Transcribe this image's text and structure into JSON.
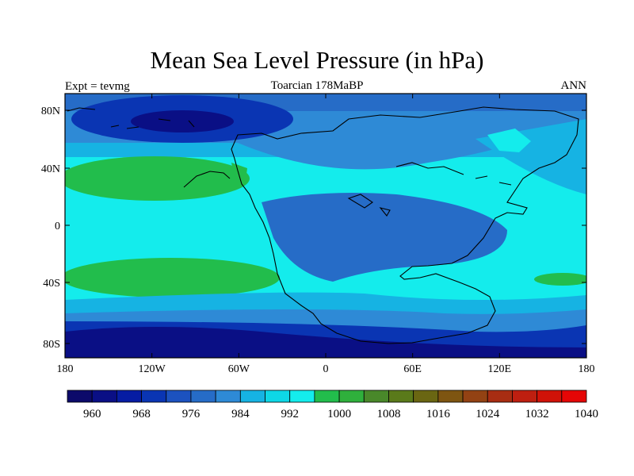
{
  "title": "Mean Sea Level Pressure (in hPa)",
  "left_label": "Expt = tevmg",
  "center_label": "Toarcian 178MaBP",
  "right_label": "ANN",
  "axes": {
    "lat_ticks": [
      "80N",
      "40N",
      "0",
      "40S",
      "80S"
    ],
    "lon_ticks": [
      "180",
      "120W",
      "60W",
      "0",
      "60E",
      "120E",
      "180"
    ]
  },
  "colorbar": {
    "colors": [
      "#0c0a6a",
      "#0a0f85",
      "#061ca3",
      "#0a35b3",
      "#1c52bf",
      "#266cc7",
      "#2e8ad6",
      "#16b3e3",
      "#0ed7e6",
      "#14ecec",
      "#22bd4c",
      "#2fb03c",
      "#49882a",
      "#5a7a1a",
      "#6a6612",
      "#7e5511",
      "#934213",
      "#a82d12",
      "#be1f10",
      "#d01208",
      "#e50606"
    ],
    "labels": [
      "960",
      "968",
      "976",
      "984",
      "992",
      "1000",
      "1008",
      "1016",
      "1024",
      "1032",
      "1040"
    ]
  },
  "palette": {
    "deep_low": "#0a0f85",
    "low": "#0a35b3",
    "mid_low": "#266cc7",
    "mid": "#2e8ad6",
    "light": "#16b3e3",
    "cyan": "#14ecec",
    "high": "#22bd4c"
  }
}
